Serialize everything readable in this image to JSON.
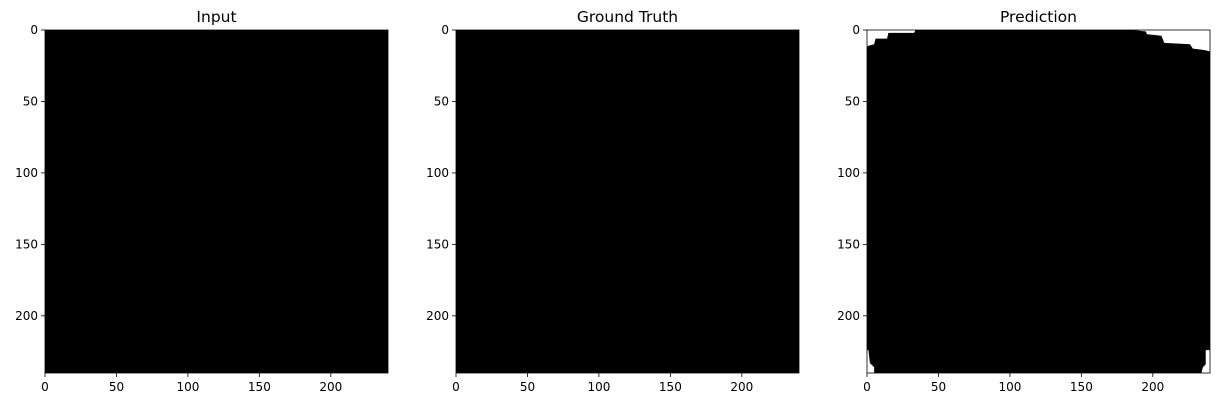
{
  "chart_data": [
    {
      "type": "heatmap",
      "title": "Input",
      "xlabel": "",
      "ylabel": "",
      "image_size": [
        240,
        240
      ],
      "xlim": [
        0,
        240
      ],
      "ylim": [
        240,
        0
      ],
      "xticks": [
        0,
        50,
        100,
        150,
        200
      ],
      "yticks": [
        0,
        50,
        100,
        150,
        200
      ],
      "colormap": "gray",
      "fill_color": "#000000",
      "mask_regions": []
    },
    {
      "type": "heatmap",
      "title": "Ground Truth",
      "xlabel": "",
      "ylabel": "",
      "image_size": [
        240,
        240
      ],
      "xlim": [
        0,
        240
      ],
      "ylim": [
        240,
        0
      ],
      "xticks": [
        0,
        50,
        100,
        150,
        200
      ],
      "yticks": [
        0,
        50,
        100,
        150,
        200
      ],
      "colormap": "gray",
      "fill_color": "#000000",
      "mask_regions": []
    },
    {
      "type": "heatmap",
      "title": "Prediction",
      "xlabel": "",
      "ylabel": "",
      "image_size": [
        240,
        240
      ],
      "xlim": [
        0,
        240
      ],
      "ylim": [
        240,
        0
      ],
      "xticks": [
        0,
        50,
        100,
        150,
        200
      ],
      "yticks": [
        0,
        50,
        100,
        150,
        200
      ],
      "colormap": "gray",
      "fill_color": "#000000",
      "mask_regions": [
        {
          "name": "white-corner-top-left",
          "points": [
            [
              0,
              0
            ],
            [
              34,
              0
            ],
            [
              33,
              2
            ],
            [
              15,
              2
            ],
            [
              14,
              6
            ],
            [
              6,
              6
            ],
            [
              5,
              10
            ],
            [
              1,
              11
            ],
            [
              0,
              12
            ]
          ]
        },
        {
          "name": "white-corner-top-right",
          "points": [
            [
              186,
              0
            ],
            [
              240,
              0
            ],
            [
              240,
              15
            ],
            [
              236,
              14
            ],
            [
              228,
              13
            ],
            [
              226,
              10
            ],
            [
              208,
              9
            ],
            [
              206,
              4
            ],
            [
              196,
              3
            ],
            [
              195,
              1
            ]
          ]
        },
        {
          "name": "white-corner-bottom-left",
          "points": [
            [
              0,
              224
            ],
            [
              1,
              224
            ],
            [
              2,
              233
            ],
            [
              5,
              236
            ],
            [
              5,
              240
            ],
            [
              0,
              240
            ]
          ]
        },
        {
          "name": "white-corner-bottom-right",
          "points": [
            [
              237,
              224
            ],
            [
              240,
              224
            ],
            [
              240,
              240
            ],
            [
              234,
              240
            ],
            [
              235,
              236
            ],
            [
              237,
              234
            ]
          ]
        }
      ]
    }
  ]
}
